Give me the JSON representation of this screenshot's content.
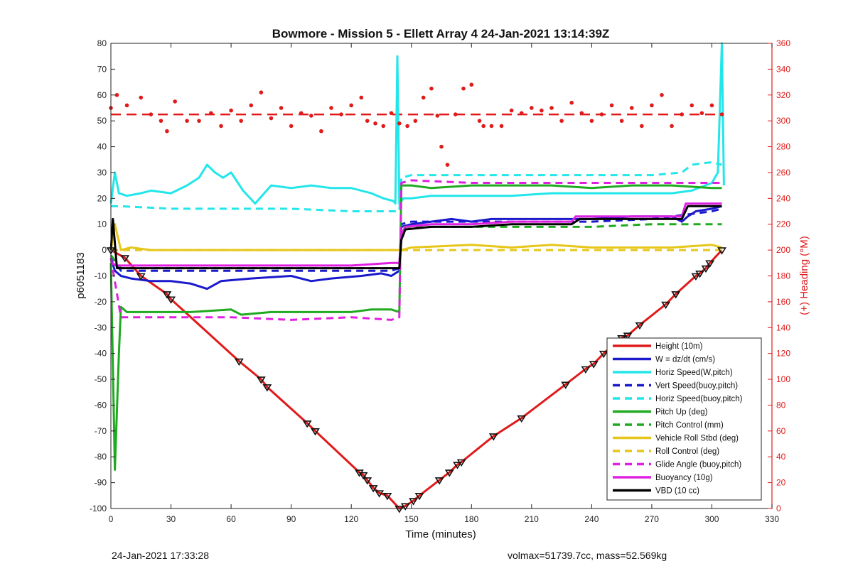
{
  "footer": {
    "left": "24-Jan-2021 17:33:28",
    "right": "volmax=51739.7cc, mass=52.569kg"
  },
  "colors": {
    "height": "#e01a1a",
    "w": "#1a1acc",
    "horiz_speed": "#22e6ea",
    "vert_speed_buoy": "#1a1acc",
    "horiz_speed_buoy": "#22e6ea",
    "pitch_up": "#1faa1f",
    "pitch_control": "#1faa1f",
    "roll": "#e6c619",
    "roll_control": "#e6c619",
    "glide_angle": "#e020e0",
    "buoyancy": "#e020e0",
    "vbd": "#000000",
    "heading": "#e01a1a"
  },
  "chart_data": {
    "type": "line",
    "title": "Bowmore - Mission 5 - Ellett Array 4 24-Jan-2021 13:14:39Z",
    "xlabel": "Time (minutes)",
    "ylabel": "p6051183",
    "y2label": "(+) Heading (°M)",
    "xlim": [
      0,
      330
    ],
    "ylim": [
      -100,
      80
    ],
    "y2lim": [
      0,
      360
    ],
    "xticks": [
      0,
      30,
      60,
      90,
      120,
      150,
      180,
      210,
      240,
      270,
      300,
      330
    ],
    "yticks": [
      -100,
      -90,
      -80,
      -70,
      -60,
      -50,
      -40,
      -30,
      -20,
      -10,
      0,
      10,
      20,
      30,
      40,
      50,
      60,
      70,
      80
    ],
    "y2ticks": [
      0,
      20,
      40,
      60,
      80,
      100,
      120,
      140,
      160,
      180,
      200,
      220,
      240,
      260,
      280,
      300,
      320,
      340,
      360
    ],
    "grid": false,
    "legend_position": "bottom-right",
    "series": [
      {
        "name": "Height (10m)",
        "style": "solid",
        "color_key": "height",
        "x": [
          0,
          7,
          15,
          28,
          30,
          64,
          75,
          78,
          98,
          102,
          124,
          126,
          128,
          131,
          134,
          138,
          144,
          147,
          151,
          154,
          164,
          169,
          173,
          175,
          191,
          205,
          227,
          237,
          241,
          246,
          253,
          255,
          258,
          264,
          277,
          282,
          292,
          294,
          297,
          299,
          305
        ],
        "y": [
          0,
          -3,
          -10,
          -17,
          -19,
          -43,
          -50,
          -53,
          -67,
          -70,
          -86,
          -87,
          -89,
          -92,
          -94,
          -95,
          -100,
          -99,
          -97,
          -95,
          -89,
          -86,
          -83,
          -82,
          -72,
          -65,
          -52,
          -46,
          -44,
          -40,
          -35,
          -34,
          -33,
          -29,
          -21,
          -17,
          -10,
          -9,
          -7,
          -5,
          0
        ]
      },
      {
        "name": "W = dz/dt (cm/s)",
        "style": "solid",
        "color_key": "w",
        "x": [
          0,
          2,
          5,
          10,
          20,
          30,
          40,
          48,
          55,
          70,
          90,
          100,
          110,
          125,
          135,
          140,
          144,
          145,
          150,
          160,
          170,
          180,
          190,
          200,
          220,
          240,
          260,
          280,
          285,
          288,
          292,
          300,
          305
        ],
        "y": [
          -3,
          -8,
          -10,
          -11,
          -12,
          -12,
          -13,
          -15,
          -12,
          -11,
          -10,
          -12,
          -11,
          -10,
          -9,
          -10,
          -8,
          9,
          10,
          11,
          12,
          11,
          12,
          12,
          12,
          12,
          13,
          13,
          11,
          13,
          15,
          16,
          17
        ]
      },
      {
        "name": "Horiz Speed(W,pitch)",
        "style": "solid",
        "color_key": "horiz_speed",
        "x": [
          0,
          2,
          4,
          8,
          15,
          20,
          30,
          38,
          44,
          48,
          52,
          56,
          60,
          66,
          72,
          80,
          90,
          100,
          110,
          120,
          130,
          136,
          141,
          142,
          143,
          144,
          146,
          150,
          160,
          180,
          200,
          220,
          240,
          260,
          280,
          290,
          300,
          303,
          305,
          306
        ],
        "y": [
          18,
          30,
          22,
          21,
          22,
          23,
          22,
          25,
          28,
          33,
          30,
          28,
          30,
          23,
          18,
          25,
          24,
          25,
          24,
          24,
          22,
          20,
          19,
          18,
          75,
          18,
          20,
          20,
          21,
          21,
          21,
          22,
          22,
          22,
          22,
          23,
          26,
          30,
          80,
          25
        ]
      },
      {
        "name": "Vert Speed(buoy,pitch)",
        "style": "dashed",
        "color_key": "vert_speed_buoy",
        "x": [
          0,
          5,
          30,
          60,
          90,
          120,
          140,
          144,
          145,
          150,
          180,
          210,
          240,
          270,
          290,
          300,
          305
        ],
        "y": [
          -2,
          -8,
          -8,
          -8,
          -8,
          -8,
          -8,
          -7,
          10,
          11,
          11,
          11,
          11,
          12,
          14,
          15,
          16
        ]
      },
      {
        "name": "Horiz Speed(buoy,pitch)",
        "style": "dashed",
        "color_key": "horiz_speed_buoy",
        "x": [
          0,
          5,
          30,
          60,
          90,
          120,
          140,
          144,
          145,
          150,
          180,
          210,
          240,
          270,
          285,
          290,
          300,
          305
        ],
        "y": [
          17,
          17,
          16,
          16,
          16,
          15,
          15,
          15,
          28,
          29,
          29,
          29,
          29,
          29,
          30,
          33,
          34,
          33
        ]
      },
      {
        "name": "Pitch Up (deg)",
        "style": "solid",
        "color_key": "pitch_up",
        "x": [
          0,
          2,
          4,
          5,
          8,
          20,
          40,
          60,
          65,
          80,
          100,
          120,
          130,
          140,
          144,
          145,
          150,
          160,
          180,
          200,
          220,
          240,
          260,
          280,
          300,
          305
        ],
        "y": [
          -5,
          -85,
          -40,
          -22,
          -24,
          -24,
          -24,
          -23,
          -25,
          -24,
          -24,
          -24,
          -23,
          -23,
          -24,
          25,
          25,
          24,
          25,
          25,
          25,
          24,
          25,
          25,
          24,
          24
        ]
      },
      {
        "name": "Pitch Control (mm)",
        "style": "dashed",
        "color_key": "pitch_control",
        "x": [
          0,
          5,
          30,
          60,
          90,
          120,
          140,
          144,
          145,
          150,
          180,
          210,
          240,
          270,
          300,
          305
        ],
        "y": [
          -2,
          -7,
          -7,
          -7,
          -7,
          -7,
          -7,
          -7,
          9,
          9,
          9,
          9,
          9,
          10,
          10,
          10
        ]
      },
      {
        "name": "Vehicle Roll Stbd (deg)",
        "style": "solid",
        "color_key": "roll",
        "x": [
          0,
          2,
          5,
          10,
          20,
          30,
          60,
          90,
          120,
          140,
          144,
          145,
          150,
          180,
          200,
          220,
          240,
          260,
          280,
          300,
          305
        ],
        "y": [
          0,
          10,
          0,
          1,
          0,
          0,
          0,
          0,
          0,
          0,
          0,
          0,
          1,
          2,
          1,
          2,
          1,
          1,
          1,
          2,
          1
        ]
      },
      {
        "name": "Roll Control (deg)",
        "style": "dashed",
        "color_key": "roll_control",
        "x": [
          0,
          5,
          30,
          60,
          90,
          120,
          140,
          144,
          145,
          150,
          180,
          210,
          240,
          270,
          300,
          305
        ],
        "y": [
          0,
          0,
          0,
          0,
          0,
          0,
          0,
          0,
          0,
          0,
          0,
          0,
          0,
          0,
          0,
          0
        ]
      },
      {
        "name": "Glide Angle (buoy,pitch)",
        "style": "dashed",
        "color_key": "glide_angle",
        "x": [
          0,
          5,
          30,
          60,
          90,
          120,
          140,
          144,
          145,
          150,
          180,
          210,
          240,
          270,
          300,
          305
        ],
        "y": [
          -3,
          -26,
          -26,
          -26,
          -27,
          -26,
          -27,
          -26,
          26,
          27,
          26,
          26,
          26,
          26,
          26,
          26
        ]
      },
      {
        "name": "Buoyancy (10g)",
        "style": "solid",
        "color_key": "buoyancy",
        "x": [
          0,
          3,
          5,
          30,
          60,
          90,
          120,
          140,
          144,
          145,
          147,
          160,
          180,
          200,
          230,
          232,
          285,
          287,
          305
        ],
        "y": [
          -5,
          -6,
          -6,
          -6,
          -6,
          -6,
          -6,
          -5,
          -5,
          6,
          9,
          10,
          10,
          11,
          11,
          13,
          13,
          18,
          18
        ]
      },
      {
        "name": "VBD (10 cc)",
        "style": "solid",
        "color_key": "vbd",
        "x": [
          0,
          1,
          3,
          5,
          30,
          60,
          90,
          120,
          140,
          144,
          145,
          147,
          160,
          180,
          200,
          230,
          234,
          285,
          288,
          305
        ],
        "y": [
          0,
          12,
          -7,
          -7,
          -7,
          -7,
          -7,
          -7,
          -7,
          -7,
          4,
          8,
          9,
          9,
          10,
          10,
          12,
          12,
          17,
          17
        ]
      }
    ],
    "heading_series": {
      "name": "(+) Heading (°M)",
      "axis": "right",
      "mean": 305,
      "x": [
        0,
        3,
        8,
        15,
        20,
        25,
        28,
        32,
        38,
        44,
        50,
        55,
        60,
        65,
        70,
        75,
        80,
        85,
        90,
        95,
        100,
        105,
        110,
        115,
        120,
        125,
        128,
        132,
        136,
        140,
        144,
        148,
        152,
        156,
        160,
        163,
        165,
        168,
        172,
        176,
        180,
        184,
        186,
        190,
        195,
        200,
        205,
        210,
        215,
        220,
        225,
        230,
        235,
        240,
        245,
        250,
        255,
        260,
        265,
        270,
        275,
        280,
        285,
        290,
        295,
        300,
        305
      ],
      "y": [
        310,
        320,
        312,
        318,
        305,
        300,
        292,
        315,
        300,
        300,
        306,
        296,
        308,
        300,
        312,
        322,
        302,
        310,
        296,
        306,
        304,
        292,
        310,
        305,
        312,
        318,
        300,
        298,
        296,
        306,
        298,
        296,
        300,
        318,
        325,
        304,
        280,
        266,
        305,
        325,
        328,
        300,
        296,
        296,
        296,
        308,
        306,
        310,
        308,
        310,
        300,
        314,
        306,
        300,
        305,
        312,
        300,
        310,
        296,
        312,
        320,
        296,
        305,
        312,
        306,
        312,
        305
      ]
    }
  }
}
